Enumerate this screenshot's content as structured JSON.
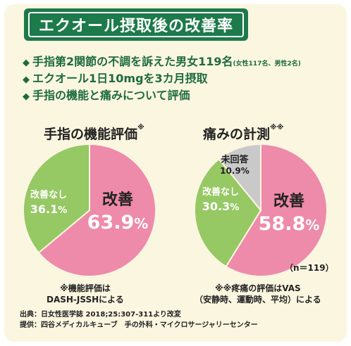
{
  "header": {
    "title": "エクオール摂取後の改善率"
  },
  "bullets": [
    {
      "text": "手指第2関節の不調を訴えた男女119名",
      "small": "(女性117名、男性2名)"
    },
    {
      "text": "エクオール1日10mgを3カ月摂取",
      "small": ""
    },
    {
      "text": "手指の機能と痛みについて評価",
      "small": ""
    }
  ],
  "colors": {
    "improved": "#ee8aaa",
    "not_improved": "#96c864",
    "no_answer": "#c9c9c9",
    "title_green": "#1d7a4a"
  },
  "chart_data": [
    {
      "type": "pie",
      "title": "手指の機能評価",
      "title_mark": "※",
      "slices": [
        {
          "label": "改善",
          "value": 63.9,
          "display": "63.9",
          "color": "#ee8aaa"
        },
        {
          "label": "改善なし",
          "value": 36.1,
          "display": "36.1",
          "color": "#96c864"
        }
      ],
      "note": [
        "※機能評価は",
        "DASH-JSSHによる"
      ]
    },
    {
      "type": "pie",
      "title": "痛みの計測",
      "title_mark": "※※",
      "slices": [
        {
          "label": "改善",
          "value": 58.8,
          "display": "58.8",
          "color": "#ee8aaa"
        },
        {
          "label": "改善なし",
          "value": 30.3,
          "display": "30.3",
          "color": "#96c864"
        },
        {
          "label": "未回答",
          "value": 10.9,
          "display": "10.9%",
          "color": "#c9c9c9"
        }
      ],
      "note": [
        "※※疼痛の評価はVAS",
        "（安静時、運動時、平均）による"
      ]
    }
  ],
  "n_label": "（n＝119）",
  "source": {
    "line1": "出典：日女性医学誌 2018;25:307-311より改変",
    "line2": "提供：四谷メディカルキューブ　手の外科・マイクロサージャリーセンター"
  }
}
